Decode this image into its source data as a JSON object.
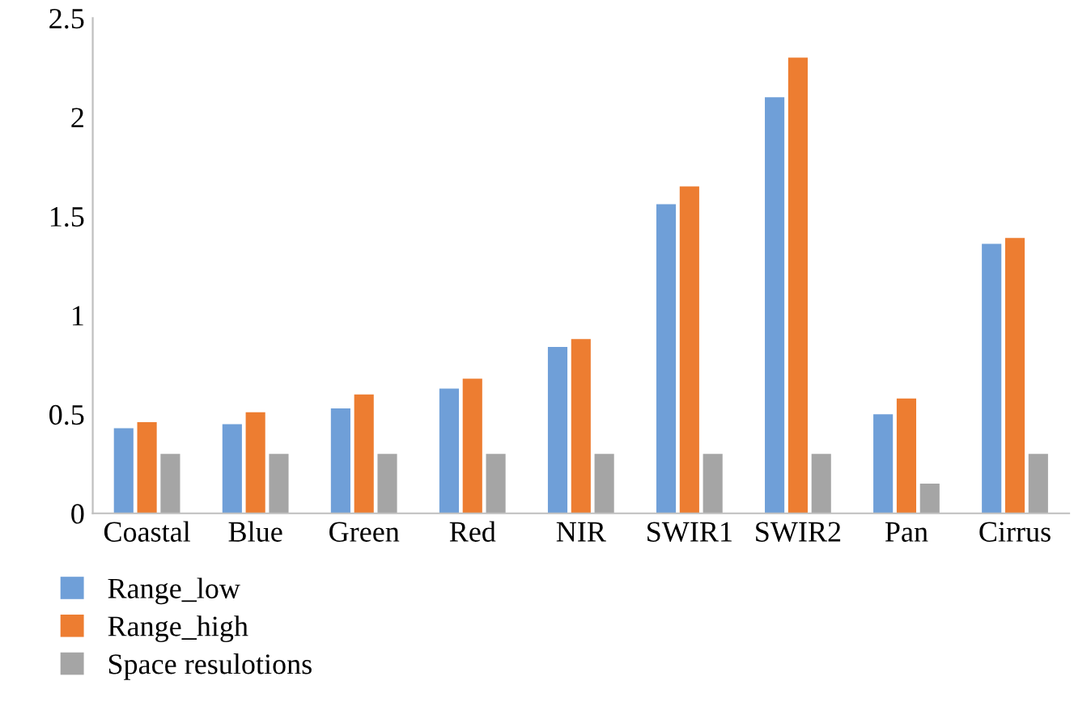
{
  "chart_data": {
    "type": "bar",
    "categories": [
      "Coastal",
      "Blue",
      "Green",
      "Red",
      "NIR",
      "SWIR1",
      "SWIR2",
      "Pan",
      "Cirrus"
    ],
    "series": [
      {
        "name": "Range_low",
        "color": "#6f9fd8",
        "values": [
          0.43,
          0.45,
          0.53,
          0.63,
          0.84,
          1.56,
          2.1,
          0.5,
          1.36
        ]
      },
      {
        "name": "Range_high",
        "color": "#ed7d31",
        "values": [
          0.46,
          0.51,
          0.6,
          0.68,
          0.88,
          1.65,
          2.3,
          0.58,
          1.39
        ]
      },
      {
        "name": "Space resulotions",
        "color": "#a5a5a5",
        "values": [
          0.3,
          0.3,
          0.3,
          0.3,
          0.3,
          0.3,
          0.3,
          0.15,
          0.3
        ]
      }
    ],
    "ylim": [
      0,
      2.5
    ],
    "yticks": [
      0,
      0.5,
      1,
      1.5,
      2,
      2.5
    ],
    "grid": false,
    "legend": "bottom"
  }
}
